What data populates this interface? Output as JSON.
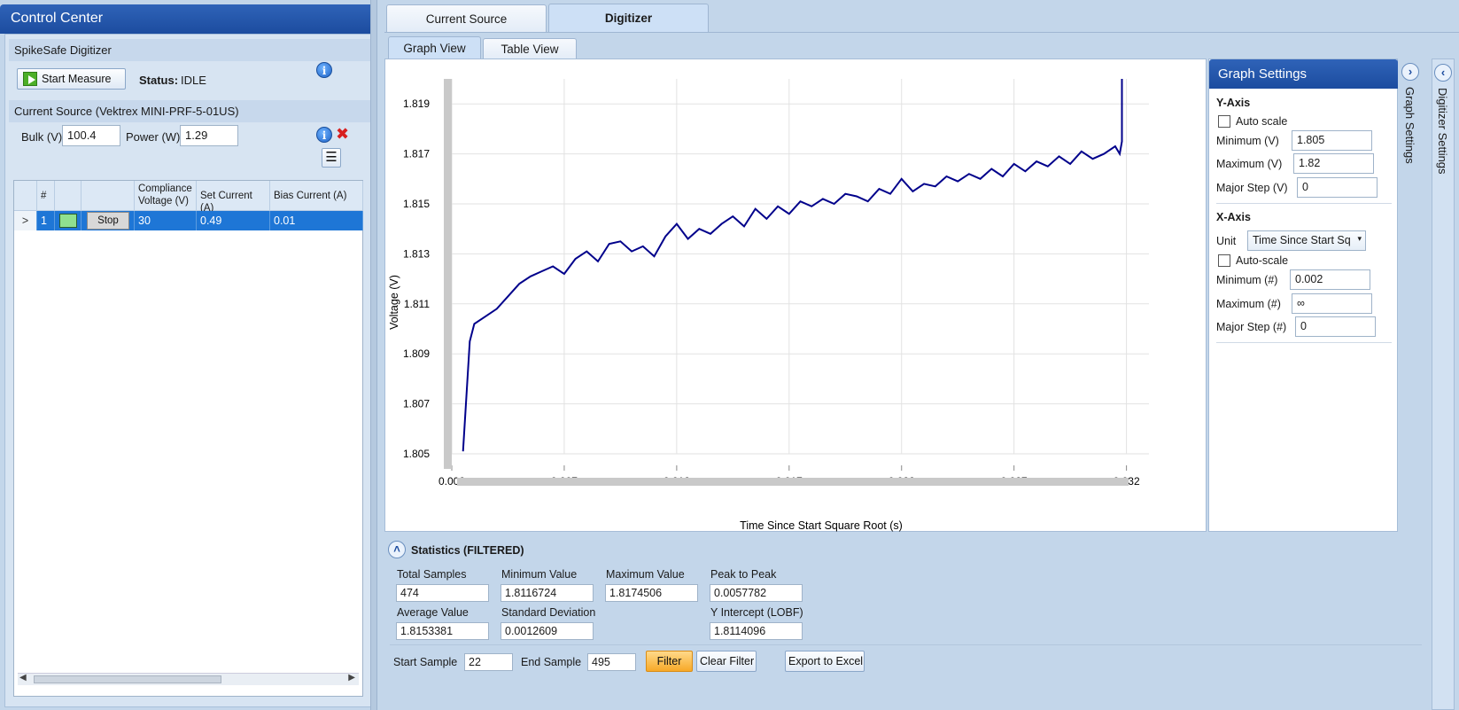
{
  "control_center": {
    "title": "Control Center",
    "digitizer_section": "SpikeSafe Digitizer",
    "start_measure_label": "Start Measure",
    "status_label": "Status:",
    "status_value": "IDLE",
    "current_source_section": "Current Source (Vektrex MINI-PRF-5-01US)",
    "bulk_label": "Bulk (V)",
    "bulk_value": "100.4",
    "power_label": "Power (W)",
    "power_value": "1.29",
    "grid": {
      "headers": [
        "#",
        "Compliance\nVoltage (V)",
        "Set Current (A)",
        "Bias Current (A)"
      ],
      "row": {
        "expander": ">",
        "index": "1",
        "color": "#8fe08f",
        "action": "Stop",
        "compliance_voltage": "30",
        "set_current": "0.49",
        "bias_current": "0.01"
      }
    }
  },
  "tabs": {
    "current_source": "Current Source",
    "digitizer": "Digitizer",
    "graph_view": "Graph View",
    "table_view": "Table View"
  },
  "graph_settings": {
    "title": "Graph Settings",
    "y_axis": {
      "heading": "Y-Axis",
      "auto_scale_label": "Auto  scale",
      "minimum_label": "Minimum (V)",
      "minimum_value": "1.805",
      "maximum_label": "Maximum (V)",
      "maximum_value": "1.82",
      "major_step_label": "Major Step (V)",
      "major_step_value": "0"
    },
    "x_axis": {
      "heading": "X-Axis",
      "unit_label": "Unit",
      "unit_value": "Time Since Start Sq",
      "auto_scale_label": "Auto-scale",
      "minimum_label": "Minimum (#)",
      "minimum_value": "0.002",
      "maximum_label": "Maximum (#)",
      "maximum_value": "∞",
      "major_step_label": "Major Step (#)",
      "major_step_value": "0"
    },
    "side_tab_label": "Graph Settings",
    "digitizer_side_tab_label": "Digitizer Settings"
  },
  "statistics": {
    "title": "Statistics (FILTERED)",
    "total_samples_label": "Total Samples",
    "total_samples": "474",
    "minimum_value_label": "Minimum Value",
    "minimum_value": "1.8116724",
    "maximum_value_label": "Maximum Value",
    "maximum_value": "1.8174506",
    "peak_to_peak_label": "Peak to Peak",
    "peak_to_peak": "0.0057782",
    "average_value_label": "Average Value",
    "average_value": "1.8153381",
    "std_dev_label": "Standard Deviation",
    "std_dev": "0.0012609",
    "y_intercept_label": "Y Intercept (LOBF)",
    "y_intercept": "1.8114096",
    "start_sample_label": "Start Sample",
    "start_sample": "22",
    "end_sample_label": "End Sample",
    "end_sample": "495",
    "filter_label": "Filter",
    "clear_filter_label": "Clear Filter",
    "export_label": "Export to Excel"
  },
  "chart_data": {
    "type": "line",
    "xlabel": "Time Since Start Square Root (s)",
    "ylabel": "Voltage (V)",
    "xlim": [
      0.002,
      0.033
    ],
    "ylim": [
      1.805,
      1.82
    ],
    "x_ticks": [
      "0.002",
      "0.007",
      "0.012",
      "0.017",
      "0.022",
      "0.027",
      "0.032"
    ],
    "y_ticks": [
      "1.805",
      "1.807",
      "1.809",
      "1.811",
      "1.813",
      "1.815",
      "1.817",
      "1.819"
    ],
    "grid": true,
    "color": "#00008b",
    "series": [
      {
        "x": [
          0.0025,
          0.0028,
          0.003,
          0.0035,
          0.004,
          0.0045,
          0.005,
          0.0055,
          0.006,
          0.0065,
          0.007,
          0.0075,
          0.008,
          0.0085,
          0.009,
          0.0095,
          0.01,
          0.0105,
          0.011,
          0.0115,
          0.012,
          0.0125,
          0.013,
          0.0135,
          0.014,
          0.0145,
          0.015,
          0.0155,
          0.016,
          0.0165,
          0.017,
          0.0175,
          0.018,
          0.0185,
          0.019,
          0.0195,
          0.02,
          0.0205,
          0.021,
          0.0215,
          0.022,
          0.0225,
          0.023,
          0.0235,
          0.024,
          0.0245,
          0.025,
          0.0255,
          0.026,
          0.0265,
          0.027,
          0.0275,
          0.028,
          0.0285,
          0.029,
          0.0295,
          0.03,
          0.0305,
          0.031,
          0.0315,
          0.0317,
          0.0318,
          0.0318
        ],
        "y": [
          1.8051,
          1.8095,
          1.8102,
          1.8105,
          1.8108,
          1.8113,
          1.8118,
          1.8121,
          1.8123,
          1.8125,
          1.8122,
          1.8128,
          1.8131,
          1.8127,
          1.8134,
          1.8135,
          1.8131,
          1.8133,
          1.8129,
          1.8137,
          1.8142,
          1.8136,
          1.814,
          1.8138,
          1.8142,
          1.8145,
          1.8141,
          1.8148,
          1.8144,
          1.8149,
          1.8146,
          1.8151,
          1.8149,
          1.8152,
          1.815,
          1.8154,
          1.8153,
          1.8151,
          1.8156,
          1.8154,
          1.816,
          1.8155,
          1.8158,
          1.8157,
          1.8161,
          1.8159,
          1.8162,
          1.816,
          1.8164,
          1.8161,
          1.8166,
          1.8163,
          1.8167,
          1.8165,
          1.8169,
          1.8166,
          1.8171,
          1.8168,
          1.817,
          1.8173,
          1.817,
          1.8175,
          1.82
        ]
      }
    ]
  }
}
